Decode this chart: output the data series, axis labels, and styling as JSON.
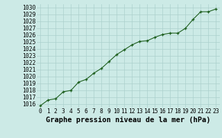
{
  "x": [
    0,
    1,
    2,
    3,
    4,
    5,
    6,
    7,
    8,
    9,
    10,
    11,
    12,
    13,
    14,
    15,
    16,
    17,
    18,
    19,
    20,
    21,
    22,
    23
  ],
  "y": [
    1015.8,
    1016.6,
    1016.8,
    1017.8,
    1018.0,
    1019.2,
    1019.6,
    1020.5,
    1021.2,
    1022.2,
    1023.2,
    1023.9,
    1024.6,
    1025.1,
    1025.2,
    1025.7,
    1026.1,
    1026.3,
    1026.3,
    1027.0,
    1028.3,
    1029.4,
    1029.4,
    1029.8
  ],
  "ylim": [
    1015.5,
    1030.5
  ],
  "xlim": [
    -0.5,
    23.5
  ],
  "yticks": [
    1016,
    1017,
    1018,
    1019,
    1020,
    1021,
    1022,
    1023,
    1024,
    1025,
    1026,
    1027,
    1028,
    1029,
    1030
  ],
  "xticks": [
    0,
    1,
    2,
    3,
    4,
    5,
    6,
    7,
    8,
    9,
    10,
    11,
    12,
    13,
    14,
    15,
    16,
    17,
    18,
    19,
    20,
    21,
    22,
    23
  ],
  "line_color": "#1a5c1a",
  "marker_color": "#1a5c1a",
  "bg_color": "#cceae6",
  "grid_color": "#aacfcc",
  "title": "Graphe pression niveau de la mer (hPa)",
  "title_fontsize": 7.5,
  "tick_fontsize": 5.8,
  "fig_bg": "#cceae6"
}
